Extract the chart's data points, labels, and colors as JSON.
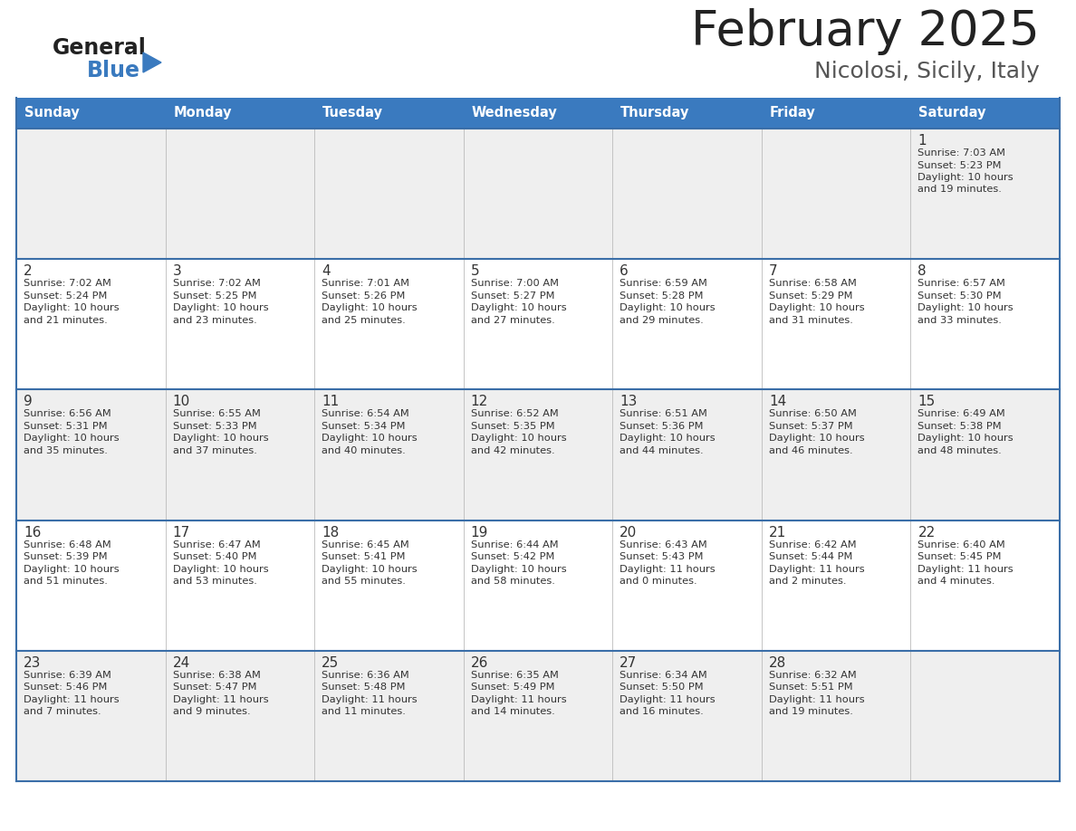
{
  "title": "February 2025",
  "subtitle": "Nicolosi, Sicily, Italy",
  "header_bg": "#3a7abf",
  "header_text": "#ffffff",
  "day_names": [
    "Sunday",
    "Monday",
    "Tuesday",
    "Wednesday",
    "Thursday",
    "Friday",
    "Saturday"
  ],
  "row_bg_week1": "#efefef",
  "row_bg_default": "#ffffff",
  "row_bg_alt": "#efefef",
  "cell_border_color": "#3a7abf",
  "row_border_color": "#3a6ea8",
  "day_num_color": "#333333",
  "info_color": "#333333",
  "title_color": "#222222",
  "subtitle_color": "#555555",
  "logo_general_color": "#222222",
  "logo_blue_color": "#3a7abf",
  "calendar": [
    [
      {
        "day": null
      },
      {
        "day": null
      },
      {
        "day": null
      },
      {
        "day": null
      },
      {
        "day": null
      },
      {
        "day": null
      },
      {
        "day": 1,
        "sunrise": "7:03 AM",
        "sunset": "5:23 PM",
        "daylight": "10 hours\nand 19 minutes."
      }
    ],
    [
      {
        "day": 2,
        "sunrise": "7:02 AM",
        "sunset": "5:24 PM",
        "daylight": "10 hours\nand 21 minutes."
      },
      {
        "day": 3,
        "sunrise": "7:02 AM",
        "sunset": "5:25 PM",
        "daylight": "10 hours\nand 23 minutes."
      },
      {
        "day": 4,
        "sunrise": "7:01 AM",
        "sunset": "5:26 PM",
        "daylight": "10 hours\nand 25 minutes."
      },
      {
        "day": 5,
        "sunrise": "7:00 AM",
        "sunset": "5:27 PM",
        "daylight": "10 hours\nand 27 minutes."
      },
      {
        "day": 6,
        "sunrise": "6:59 AM",
        "sunset": "5:28 PM",
        "daylight": "10 hours\nand 29 minutes."
      },
      {
        "day": 7,
        "sunrise": "6:58 AM",
        "sunset": "5:29 PM",
        "daylight": "10 hours\nand 31 minutes."
      },
      {
        "day": 8,
        "sunrise": "6:57 AM",
        "sunset": "5:30 PM",
        "daylight": "10 hours\nand 33 minutes."
      }
    ],
    [
      {
        "day": 9,
        "sunrise": "6:56 AM",
        "sunset": "5:31 PM",
        "daylight": "10 hours\nand 35 minutes."
      },
      {
        "day": 10,
        "sunrise": "6:55 AM",
        "sunset": "5:33 PM",
        "daylight": "10 hours\nand 37 minutes."
      },
      {
        "day": 11,
        "sunrise": "6:54 AM",
        "sunset": "5:34 PM",
        "daylight": "10 hours\nand 40 minutes."
      },
      {
        "day": 12,
        "sunrise": "6:52 AM",
        "sunset": "5:35 PM",
        "daylight": "10 hours\nand 42 minutes."
      },
      {
        "day": 13,
        "sunrise": "6:51 AM",
        "sunset": "5:36 PM",
        "daylight": "10 hours\nand 44 minutes."
      },
      {
        "day": 14,
        "sunrise": "6:50 AM",
        "sunset": "5:37 PM",
        "daylight": "10 hours\nand 46 minutes."
      },
      {
        "day": 15,
        "sunrise": "6:49 AM",
        "sunset": "5:38 PM",
        "daylight": "10 hours\nand 48 minutes."
      }
    ],
    [
      {
        "day": 16,
        "sunrise": "6:48 AM",
        "sunset": "5:39 PM",
        "daylight": "10 hours\nand 51 minutes."
      },
      {
        "day": 17,
        "sunrise": "6:47 AM",
        "sunset": "5:40 PM",
        "daylight": "10 hours\nand 53 minutes."
      },
      {
        "day": 18,
        "sunrise": "6:45 AM",
        "sunset": "5:41 PM",
        "daylight": "10 hours\nand 55 minutes."
      },
      {
        "day": 19,
        "sunrise": "6:44 AM",
        "sunset": "5:42 PM",
        "daylight": "10 hours\nand 58 minutes."
      },
      {
        "day": 20,
        "sunrise": "6:43 AM",
        "sunset": "5:43 PM",
        "daylight": "11 hours\nand 0 minutes."
      },
      {
        "day": 21,
        "sunrise": "6:42 AM",
        "sunset": "5:44 PM",
        "daylight": "11 hours\nand 2 minutes."
      },
      {
        "day": 22,
        "sunrise": "6:40 AM",
        "sunset": "5:45 PM",
        "daylight": "11 hours\nand 4 minutes."
      }
    ],
    [
      {
        "day": 23,
        "sunrise": "6:39 AM",
        "sunset": "5:46 PM",
        "daylight": "11 hours\nand 7 minutes."
      },
      {
        "day": 24,
        "sunrise": "6:38 AM",
        "sunset": "5:47 PM",
        "daylight": "11 hours\nand 9 minutes."
      },
      {
        "day": 25,
        "sunrise": "6:36 AM",
        "sunset": "5:48 PM",
        "daylight": "11 hours\nand 11 minutes."
      },
      {
        "day": 26,
        "sunrise": "6:35 AM",
        "sunset": "5:49 PM",
        "daylight": "11 hours\nand 14 minutes."
      },
      {
        "day": 27,
        "sunrise": "6:34 AM",
        "sunset": "5:50 PM",
        "daylight": "11 hours\nand 16 minutes."
      },
      {
        "day": 28,
        "sunrise": "6:32 AM",
        "sunset": "5:51 PM",
        "daylight": "11 hours\nand 19 minutes."
      },
      {
        "day": null
      }
    ]
  ],
  "row_backgrounds": [
    "#efefef",
    "#ffffff",
    "#efefef",
    "#ffffff",
    "#efefef"
  ]
}
